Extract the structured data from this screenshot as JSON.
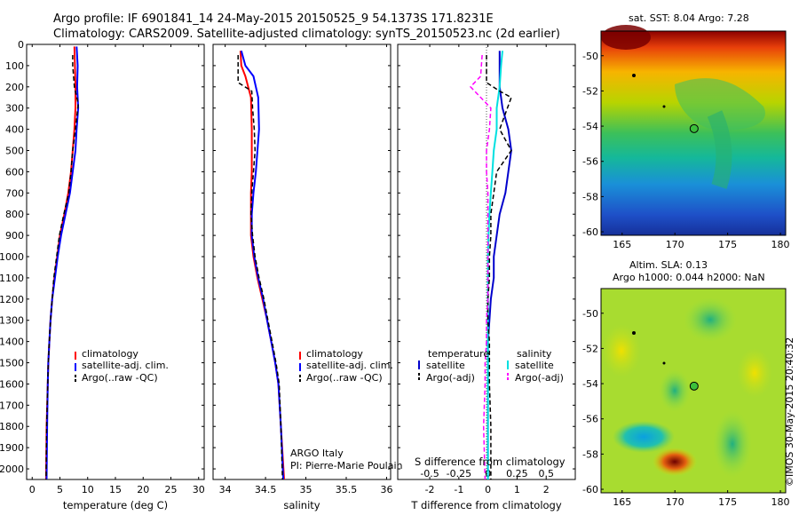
{
  "header": {
    "line1": "Argo profile: IF 6901841_14 24-May-2015 20150525_9 54.1373S 171.8231E",
    "line2": "Climatology: CARS2009. Satellite-adjusted climatology: synTS_20150523.nc (2d earlier)"
  },
  "colors": {
    "climatology": "#ff0000",
    "satellite_adj": "#0000ff",
    "argo": "#000000",
    "t_satellite": "#0000cc",
    "s_satellite": "#00e0e0",
    "s_argo": "#ff00ff"
  },
  "legend": {
    "climatology": "climatology",
    "satellite_adj": "satellite-adj. clim.",
    "argo": "Argo(..raw -QC)",
    "temperature": "temperature",
    "salinity": "salinity",
    "satellite": "satellite",
    "argo_adj": "Argo(-adj)"
  },
  "credits": {
    "argo_italy": "ARGO Italy",
    "pi": "PI: Pierre-Marie Poulain",
    "imos": "©IMOS 30-May-2015 20:40:32"
  },
  "maps": {
    "sst_title": "sat. SST: 8.04 Argo: 7.28",
    "sla_title1": "Altim. SLA: 0.13",
    "sla_title2": "Argo h1000: 0.044 h2000: NaN",
    "lat_ticks": [
      "-50",
      "-52",
      "-54",
      "-56",
      "-58",
      "-60"
    ],
    "lon_ticks": [
      "165",
      "170",
      "175",
      "180"
    ],
    "float_lon": 171.82,
    "float_lat": -54.14
  },
  "chart_data": [
    {
      "type": "line",
      "name": "temperature-panel",
      "xlabel": "temperature (deg C)",
      "ylabel": "",
      "xlim": [
        -1,
        31
      ],
      "ylim": [
        2050,
        0
      ],
      "xticks": [
        0,
        5,
        10,
        15,
        20,
        25,
        30
      ],
      "yticks": [
        0,
        100,
        200,
        300,
        400,
        500,
        600,
        700,
        800,
        900,
        1000,
        1100,
        1200,
        1300,
        1400,
        1500,
        1600,
        1700,
        1800,
        1900,
        2000
      ],
      "series": [
        {
          "name": "climatology",
          "color_key": "climatology",
          "width": 2,
          "x": [
            7.6,
            7.7,
            7.8,
            7.8,
            7.6,
            7.3,
            7.0,
            6.5,
            5.8,
            5.0,
            4.5,
            4.0,
            3.6,
            3.3,
            3.1,
            2.9,
            2.8,
            2.6,
            2.5
          ],
          "y": [
            10,
            100,
            200,
            300,
            400,
            500,
            600,
            700,
            800,
            900,
            1000,
            1100,
            1200,
            1300,
            1400,
            1500,
            1600,
            1800,
            2050
          ]
        },
        {
          "name": "satellite-adj. clim.",
          "color_key": "satellite_adj",
          "width": 2,
          "x": [
            8.0,
            8.2,
            8.1,
            8.3,
            8.0,
            7.8,
            7.3,
            6.8,
            6.0,
            5.2,
            4.6,
            4.1,
            3.6,
            3.3,
            3.1,
            2.9,
            2.8,
            2.7,
            2.6
          ],
          "y": [
            10,
            100,
            200,
            300,
            400,
            500,
            600,
            700,
            800,
            900,
            1000,
            1100,
            1200,
            1300,
            1400,
            1500,
            1600,
            1800,
            2050
          ]
        },
        {
          "name": "Argo(..raw -QC)",
          "color_key": "argo",
          "width": 1.5,
          "dash": "5,3",
          "x": [
            7.3,
            7.3,
            7.6,
            8.3,
            7.8,
            7.3,
            7.0,
            6.6,
            5.7,
            4.9,
            4.4,
            3.9,
            3.6,
            3.3,
            3.1,
            2.9,
            2.8,
            2.6,
            2.5
          ],
          "y": [
            50,
            100,
            200,
            280,
            400,
            500,
            600,
            700,
            800,
            900,
            1000,
            1100,
            1200,
            1300,
            1400,
            1500,
            1600,
            1800,
            2050
          ]
        }
      ]
    },
    {
      "type": "line",
      "name": "salinity-panel",
      "xlabel": "salinity",
      "ylabel": "",
      "xlim": [
        33.85,
        36.05
      ],
      "ylim": [
        2050,
        0
      ],
      "xticks": [
        34,
        34.5,
        35,
        35.5,
        36
      ],
      "series": [
        {
          "name": "climatology",
          "color_key": "climatology",
          "width": 2,
          "x": [
            34.19,
            34.2,
            34.25,
            34.32,
            34.33,
            34.33,
            34.33,
            34.32,
            34.32,
            34.32,
            34.35,
            34.4,
            34.46,
            34.52,
            34.57,
            34.62,
            34.66,
            34.69,
            34.73
          ],
          "y": [
            30,
            100,
            150,
            250,
            400,
            500,
            600,
            700,
            800,
            900,
            1000,
            1100,
            1200,
            1300,
            1400,
            1500,
            1600,
            1800,
            2050
          ]
        },
        {
          "name": "satellite-adj. clim.",
          "color_key": "satellite_adj",
          "width": 2,
          "x": [
            34.2,
            34.25,
            34.35,
            34.41,
            34.42,
            34.4,
            34.38,
            34.35,
            34.33,
            34.33,
            34.36,
            34.41,
            34.47,
            34.52,
            34.57,
            34.62,
            34.66,
            34.69,
            34.72
          ],
          "y": [
            30,
            100,
            150,
            250,
            400,
            500,
            600,
            700,
            800,
            900,
            1000,
            1100,
            1200,
            1300,
            1400,
            1500,
            1600,
            1800,
            2050
          ]
        },
        {
          "name": "Argo(..raw -QC)",
          "color_key": "argo",
          "width": 1.5,
          "dash": "5,3",
          "x": [
            34.16,
            34.16,
            34.33,
            34.34,
            34.36,
            34.37,
            34.35,
            34.33,
            34.32,
            34.34,
            34.37,
            34.42,
            34.48,
            34.53,
            34.58,
            34.63,
            34.67,
            34.69,
            34.71
          ],
          "y": [
            50,
            180,
            220,
            300,
            400,
            500,
            600,
            700,
            800,
            900,
            1000,
            1100,
            1200,
            1300,
            1400,
            1500,
            1600,
            1800,
            2050
          ]
        }
      ]
    },
    {
      "type": "line",
      "name": "difference-panel",
      "xlabel": "T difference from climatology",
      "xlabel_top": "S difference from climatology",
      "xlim": [
        -3.1,
        3.0
      ],
      "ylim": [
        2050,
        0
      ],
      "xticks": [
        -2,
        -1,
        0,
        1,
        2
      ],
      "xticks_s": [
        -0.5,
        -0.25,
        0,
        0.25,
        0.5
      ],
      "series": [
        {
          "name": "temperature satellite",
          "color_key": "t_satellite",
          "width": 2,
          "x": [
            0.4,
            0.4,
            0.4,
            0.5,
            0.7,
            0.8,
            0.7,
            0.6,
            0.4,
            0.3,
            0.2,
            0.2,
            0.1,
            0.05,
            0.0,
            0.0,
            0.0,
            0.0,
            0.0
          ],
          "y": [
            30,
            100,
            200,
            300,
            400,
            500,
            600,
            700,
            800,
            900,
            1000,
            1100,
            1200,
            1300,
            1400,
            1500,
            1600,
            1800,
            2050
          ]
        },
        {
          "name": "salinity satellite",
          "color_key": "s_satellite",
          "width": 2,
          "x": [
            0.5,
            0.45,
            0.4,
            0.3,
            0.3,
            0.2,
            0.15,
            0.1,
            0.05,
            0.02,
            0.0,
            0.0,
            0.0,
            0.0,
            0.0,
            0.0,
            0.0,
            0.0,
            0.0
          ],
          "y": [
            30,
            100,
            200,
            300,
            400,
            500,
            600,
            700,
            800,
            900,
            1000,
            1100,
            1200,
            1300,
            1400,
            1500,
            1600,
            1800,
            2050
          ]
        },
        {
          "name": "temperature Argo(-adj)",
          "color_key": "argo",
          "width": 1.5,
          "dash": "5,3",
          "x": [
            -0.05,
            -0.05,
            0.4,
            0.8,
            0.4,
            0.8,
            0.3,
            0.2,
            0.1,
            0.1,
            0.05,
            0.05,
            0.0,
            0.0,
            0.05,
            0.05,
            0.05,
            0.1,
            0.1
          ],
          "y": [
            50,
            180,
            220,
            250,
            400,
            500,
            600,
            700,
            800,
            900,
            1000,
            1100,
            1200,
            1300,
            1400,
            1500,
            1600,
            1800,
            2050
          ]
        },
        {
          "name": "salinity Argo(-adj)",
          "color_key": "s_argo",
          "width": 1.5,
          "dash": "5,3",
          "x": [
            -0.2,
            -0.25,
            -0.6,
            0.1,
            0.05,
            -0.05,
            -0.05,
            0.0,
            0.0,
            0.0,
            0.0,
            0.0,
            0.0,
            -0.05,
            -0.05,
            -0.1,
            -0.1,
            -0.15,
            -0.1
          ],
          "y": [
            50,
            150,
            200,
            300,
            400,
            500,
            600,
            700,
            800,
            900,
            1000,
            1100,
            1200,
            1300,
            1400,
            1500,
            1600,
            1800,
            2050
          ]
        }
      ]
    }
  ]
}
